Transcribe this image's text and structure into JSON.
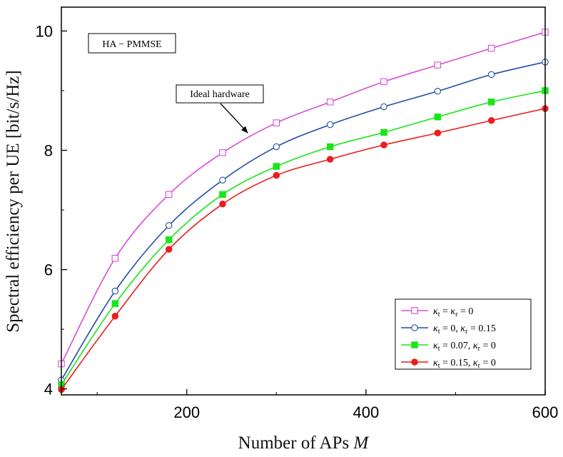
{
  "chart_data": {
    "type": "line",
    "title": "",
    "xlabel": "Number of APs M",
    "ylabel": "Spectral efficiency per UE [bit/s/Hz]",
    "xlim": [
      60,
      600
    ],
    "ylim": [
      3.9,
      10.4
    ],
    "xticks": [
      200,
      400,
      600
    ],
    "yticks": [
      4,
      6,
      8,
      10
    ],
    "x": [
      60,
      120,
      180,
      240,
      300,
      360,
      420,
      480,
      540,
      600
    ],
    "series": [
      {
        "name": "κt = κr = 0",
        "color": "#d64fd6",
        "marker": "open-square",
        "values": [
          4.42,
          6.19,
          7.26,
          7.96,
          8.46,
          8.81,
          9.15,
          9.43,
          9.71,
          9.98
        ]
      },
      {
        "name": "κt = 0, κr = 0.15",
        "color": "#1f4ea3",
        "marker": "open-circle",
        "values": [
          4.15,
          5.64,
          6.74,
          7.5,
          8.06,
          8.43,
          8.73,
          8.99,
          9.27,
          9.48
        ]
      },
      {
        "name": "κt = 0.07, κr = 0",
        "color": "#19e619",
        "marker": "filled-square",
        "values": [
          4.07,
          5.43,
          6.5,
          7.26,
          7.73,
          8.06,
          8.3,
          8.56,
          8.81,
          9.0
        ]
      },
      {
        "name": "κt = 0.15, κr = 0",
        "color": "#ee1c1c",
        "marker": "filled-circle",
        "values": [
          3.99,
          5.22,
          6.34,
          7.1,
          7.58,
          7.85,
          8.09,
          8.29,
          8.5,
          8.7
        ]
      }
    ],
    "label_box": "HA − PMMSE",
    "annotation": "Ideal hardware",
    "legend_position": "bottom-right"
  }
}
